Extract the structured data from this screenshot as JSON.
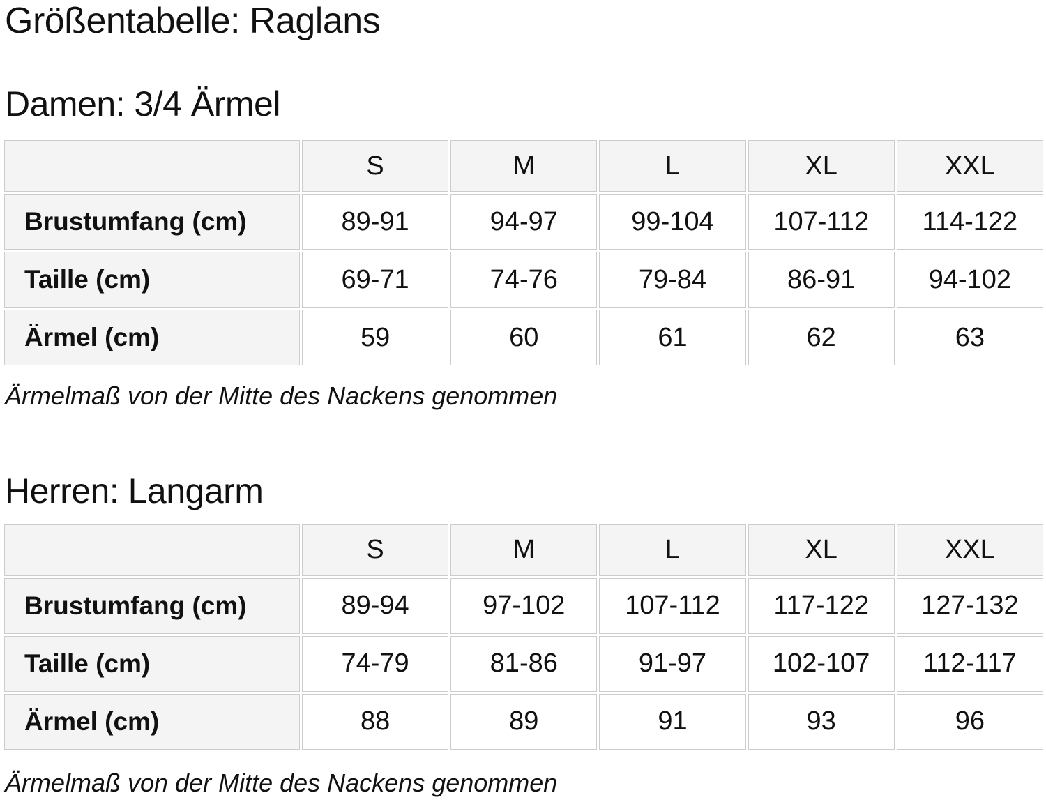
{
  "page": {
    "title": "Größentabelle: Raglans"
  },
  "colors": {
    "header_cell_bg": "#f4f4f4",
    "border": "#cccccc",
    "text": "#111111",
    "page_bg": "#ffffff"
  },
  "sections": [
    {
      "heading": "Damen: 3/4 Ärmel",
      "note": "Ärmelmaß von der Mitte des Nackens genommen",
      "table": {
        "corner_label": "",
        "size_headers": [
          "S",
          "M",
          "L",
          "XL",
          "XXL"
        ],
        "rows": [
          {
            "label": "Brustumfang (cm)",
            "values": [
              "89-91",
              "94-97",
              "99-104",
              "107-112",
              "114-122"
            ]
          },
          {
            "label": "Taille (cm)",
            "values": [
              "69-71",
              "74-76",
              "79-84",
              "86-91",
              "94-102"
            ]
          },
          {
            "label": "Ärmel (cm)",
            "values": [
              "59",
              "60",
              "61",
              "62",
              "63"
            ]
          }
        ]
      }
    },
    {
      "heading": "Herren: Langarm",
      "note": "Ärmelmaß von der Mitte des Nackens genommen",
      "table": {
        "corner_label": "",
        "size_headers": [
          "S",
          "M",
          "L",
          "XL",
          "XXL"
        ],
        "rows": [
          {
            "label": "Brustumfang (cm)",
            "values": [
              "89-94",
              "97-102",
              "107-112",
              "117-122",
              "127-132"
            ]
          },
          {
            "label": "Taille (cm)",
            "values": [
              "74-79",
              "81-86",
              "91-97",
              "102-107",
              "112-117"
            ]
          },
          {
            "label": "Ärmel (cm)",
            "values": [
              "88",
              "89",
              "91",
              "93",
              "96"
            ]
          }
        ]
      }
    }
  ]
}
